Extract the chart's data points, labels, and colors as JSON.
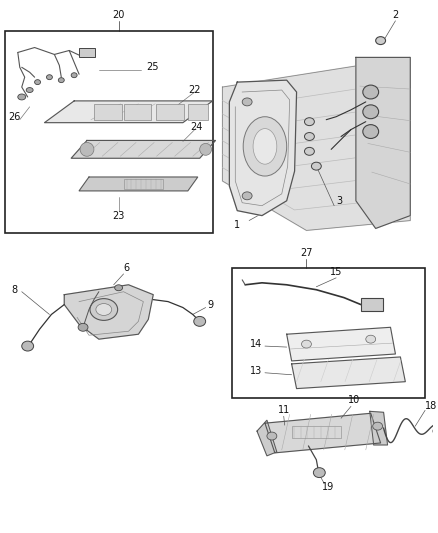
{
  "bg_color": "#ffffff",
  "fig_w": 4.38,
  "fig_h": 5.33,
  "dpi": 100,
  "lbl_fs": 7.0,
  "lbl_color": "#111111"
}
